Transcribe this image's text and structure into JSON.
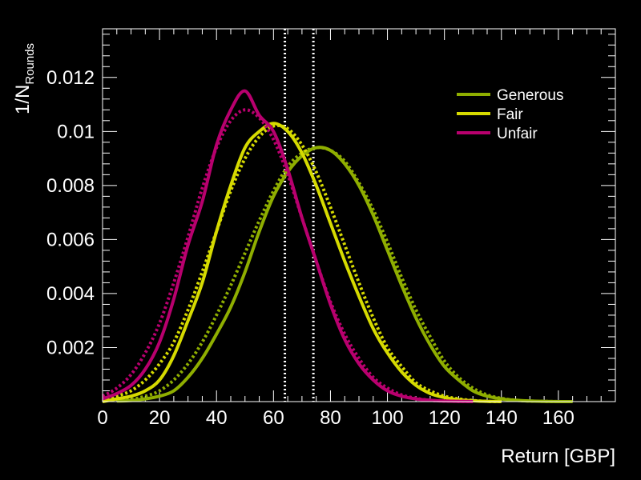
{
  "chart_data": {
    "type": "line",
    "xlabel": "Return [GBP]",
    "ylabel": "1/N",
    "ylabel_sub": "Rounds",
    "xlim": [
      0,
      180
    ],
    "ylim": [
      0,
      0.0138
    ],
    "x_ticks": [
      "0",
      "20",
      "40",
      "60",
      "80",
      "100",
      "120",
      "140",
      "160"
    ],
    "y_ticks": [
      "0.002",
      "0.004",
      "0.006",
      "0.008",
      "0.01",
      "0.012"
    ],
    "vlines": [
      64,
      74
    ],
    "legend": "top-right",
    "series": [
      {
        "name": "Generous",
        "color": "#8fae00",
        "x": [
          5,
          10,
          15,
          20,
          25,
          30,
          35,
          40,
          45,
          50,
          55,
          60,
          65,
          70,
          75,
          80,
          85,
          90,
          95,
          100,
          105,
          110,
          115,
          120,
          125,
          130,
          135,
          140,
          145,
          150,
          155,
          160,
          165
        ],
        "values": [
          2e-05,
          4e-05,
          0.0001,
          0.0002,
          0.0004,
          0.0009,
          0.0016,
          0.0025,
          0.0035,
          0.0048,
          0.0063,
          0.0076,
          0.0085,
          0.0091,
          0.0094,
          0.0093,
          0.0088,
          0.008,
          0.0069,
          0.0056,
          0.0043,
          0.0031,
          0.0021,
          0.0013,
          0.0008,
          0.0004,
          0.0002,
          0.0001,
          5e-05,
          2e-05,
          1e-05,
          0.0,
          0.0
        ],
        "fit": [
          3e-05,
          8e-05,
          0.0002,
          0.0004,
          0.0008,
          0.0014,
          0.0022,
          0.0032,
          0.0043,
          0.0055,
          0.0067,
          0.0078,
          0.0087,
          0.0092,
          0.0094,
          0.0093,
          0.0089,
          0.0081,
          0.0071,
          0.0059,
          0.0046,
          0.0034,
          0.0024,
          0.0015,
          0.0009,
          0.0005,
          0.00025,
          0.00012,
          5e-05,
          2e-05,
          1e-05,
          0.0,
          0.0
        ]
      },
      {
        "name": "Fair",
        "color": "#d6da00",
        "x": [
          0,
          5,
          10,
          15,
          20,
          25,
          30,
          35,
          40,
          45,
          50,
          55,
          60,
          65,
          70,
          75,
          80,
          85,
          90,
          95,
          100,
          105,
          110,
          115,
          120,
          125,
          130,
          135,
          140
        ],
        "values": [
          0.0,
          0.0001,
          0.0002,
          0.0004,
          0.0008,
          0.0017,
          0.003,
          0.0044,
          0.0063,
          0.008,
          0.0094,
          0.01,
          0.0103,
          0.01,
          0.0092,
          0.008,
          0.0066,
          0.0052,
          0.0039,
          0.0027,
          0.0018,
          0.0011,
          0.0006,
          0.0003,
          0.00015,
          7e-05,
          3e-05,
          1e-05,
          0.0
        ],
        "fit": [
          0.0,
          0.0002,
          0.0004,
          0.0008,
          0.0014,
          0.0022,
          0.0034,
          0.0048,
          0.0063,
          0.0078,
          0.009,
          0.0098,
          0.0102,
          0.0101,
          0.0095,
          0.0085,
          0.0072,
          0.0058,
          0.0044,
          0.0031,
          0.002,
          0.0013,
          0.0007,
          0.0004,
          0.0002,
          0.0001,
          4e-05,
          1e-05,
          0.0
        ]
      },
      {
        "name": "Unfair",
        "color": "#b8006e",
        "x": [
          0,
          5,
          10,
          15,
          20,
          25,
          30,
          35,
          40,
          45,
          50,
          55,
          60,
          65,
          70,
          75,
          80,
          85,
          90,
          95,
          100,
          105,
          110,
          115,
          120,
          125,
          130
        ],
        "values": [
          0.0001,
          0.0003,
          0.0006,
          0.0012,
          0.0022,
          0.0038,
          0.0058,
          0.0074,
          0.0095,
          0.0108,
          0.0115,
          0.0106,
          0.01,
          0.0086,
          0.0068,
          0.0052,
          0.0036,
          0.0023,
          0.0014,
          0.0008,
          0.0004,
          0.0002,
          0.0001,
          5e-05,
          2e-05,
          1e-05,
          0.0
        ],
        "fit": [
          0.0002,
          0.0005,
          0.001,
          0.0018,
          0.0029,
          0.0044,
          0.0061,
          0.0079,
          0.0094,
          0.0104,
          0.0108,
          0.0105,
          0.0097,
          0.0084,
          0.0068,
          0.0052,
          0.0037,
          0.0025,
          0.0016,
          0.0009,
          0.0005,
          0.00025,
          0.00012,
          5e-05,
          2e-05,
          1e-05,
          0.0
        ]
      }
    ]
  }
}
